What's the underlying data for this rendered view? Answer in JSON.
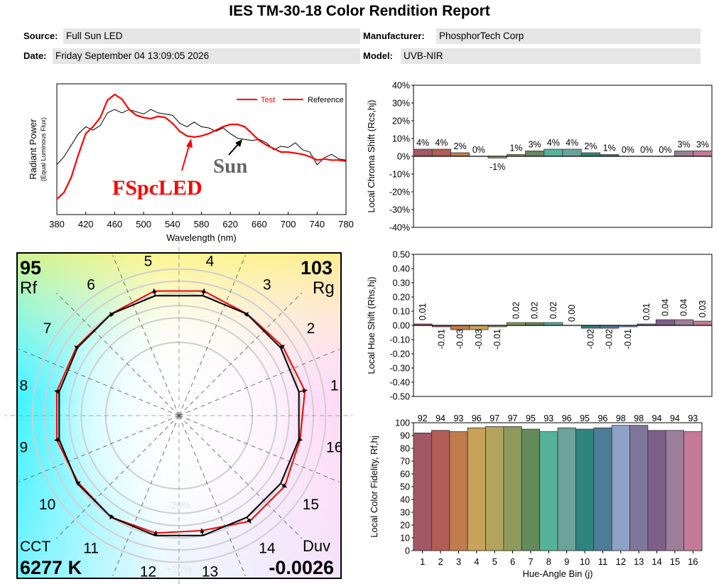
{
  "report": {
    "title": "IES TM-30-18 Color Rendition Report",
    "source_label": "Source:",
    "source_value": "Full Sun LED",
    "date_label": "Date:",
    "date_value": "Friday September 04 13:09:05 2026",
    "manufacturer_label": "Manufacturer:",
    "manufacturer_value": "PhosphorTech Corp",
    "model_label": "Model:",
    "model_value": "UVB-NIR"
  },
  "colors": {
    "test": "#ff0000",
    "reference": "#000000",
    "bins": [
      "#a35865",
      "#b15c55",
      "#c07c4c",
      "#c8a259",
      "#b4a45e",
      "#8d9a5b",
      "#658a5a",
      "#56b29a",
      "#6ba29a",
      "#2f847f",
      "#4e7d97",
      "#8ea2c8",
      "#7f779a",
      "#7d5f8a",
      "#9c7e9a",
      "#c47a98"
    ]
  },
  "chart_data": [
    {
      "type": "line",
      "name": "spectral-power",
      "xlabel": "Wavelength (nm)",
      "ylabel": "Radiant Power",
      "ylabel_sub": "(Equal Luminous Flux)",
      "xlim": [
        380,
        780
      ],
      "xticks": [
        380,
        420,
        460,
        500,
        540,
        580,
        620,
        660,
        700,
        740,
        780
      ],
      "legend": [
        "Test",
        "Reference"
      ],
      "legend_position": "top-right",
      "annotations": [
        "FSpcLED",
        "Sun"
      ],
      "series": [
        {
          "name": "Test",
          "x": [
            380,
            390,
            400,
            410,
            420,
            430,
            440,
            450,
            460,
            470,
            480,
            490,
            500,
            510,
            520,
            530,
            540,
            550,
            560,
            570,
            580,
            590,
            600,
            610,
            620,
            630,
            640,
            650,
            660,
            670,
            680,
            690,
            700,
            710,
            720,
            730,
            740,
            750,
            760,
            770,
            780
          ],
          "y": [
            0.09,
            0.15,
            0.28,
            0.48,
            0.66,
            0.72,
            0.8,
            0.95,
            1.0,
            0.96,
            0.87,
            0.82,
            0.8,
            0.79,
            0.81,
            0.8,
            0.75,
            0.68,
            0.64,
            0.63,
            0.64,
            0.66,
            0.69,
            0.72,
            0.74,
            0.74,
            0.72,
            0.66,
            0.6,
            0.56,
            0.53,
            0.5,
            0.5,
            0.49,
            0.48,
            0.46,
            0.43,
            0.44,
            0.43,
            0.43,
            0.42
          ]
        },
        {
          "name": "Reference",
          "x": [
            380,
            390,
            400,
            410,
            420,
            430,
            440,
            450,
            460,
            470,
            480,
            490,
            500,
            510,
            520,
            530,
            540,
            550,
            560,
            570,
            580,
            590,
            600,
            610,
            620,
            630,
            640,
            650,
            660,
            670,
            680,
            690,
            700,
            710,
            720,
            730,
            740,
            750,
            760,
            770,
            780
          ],
          "y": [
            0.39,
            0.46,
            0.56,
            0.66,
            0.72,
            0.69,
            0.73,
            0.84,
            0.87,
            0.84,
            0.87,
            0.85,
            0.83,
            0.87,
            0.84,
            0.83,
            0.82,
            0.75,
            0.72,
            0.76,
            0.72,
            0.71,
            0.68,
            0.71,
            0.66,
            0.62,
            0.61,
            0.6,
            0.61,
            0.58,
            0.52,
            0.55,
            0.54,
            0.58,
            0.52,
            0.5,
            0.39,
            0.45,
            0.48,
            0.44,
            0.43
          ]
        }
      ]
    },
    {
      "type": "bar",
      "name": "local-chroma-shift",
      "ylabel": "Local Chroma Shift (Rcs,hj)",
      "ylim": [
        -40,
        40
      ],
      "yticks": [
        "-40%",
        "-30%",
        "-20%",
        "-10%",
        "0%",
        "10%",
        "20%",
        "30%",
        "40%"
      ],
      "categories": [
        1,
        2,
        3,
        4,
        5,
        6,
        7,
        8,
        9,
        10,
        11,
        12,
        13,
        14,
        15,
        16
      ],
      "values": [
        4,
        4,
        2,
        0,
        -1,
        1,
        3,
        4,
        4,
        2,
        1,
        0,
        0,
        0,
        3,
        3
      ],
      "labels": [
        "4%",
        "4%",
        "2%",
        "0%",
        "-1%",
        "1%",
        "3%",
        "4%",
        "4%",
        "2%",
        "1%",
        "0%",
        "0%",
        "0%",
        "3%",
        "3%"
      ]
    },
    {
      "type": "bar",
      "name": "local-hue-shift",
      "ylabel": "Local Hue Shift (Rhs,hj)",
      "ylim": [
        -0.5,
        0.5
      ],
      "yticks": [
        "-0.50",
        "-0.40",
        "-0.30",
        "-0.20",
        "-0.10",
        "0.00",
        "0.10",
        "0.20",
        "0.30",
        "0.40",
        "0.50"
      ],
      "categories": [
        1,
        2,
        3,
        4,
        5,
        6,
        7,
        8,
        9,
        10,
        11,
        12,
        13,
        14,
        15,
        16
      ],
      "values": [
        0.01,
        -0.01,
        -0.03,
        -0.03,
        -0.01,
        0.02,
        0.02,
        0.02,
        0.0,
        -0.02,
        -0.02,
        -0.01,
        0.01,
        0.04,
        0.04,
        0.03
      ],
      "labels": [
        "0.01",
        "-0.01",
        "-0.03",
        "-0.03",
        "-0.01",
        "0.02",
        "0.02",
        "0.02",
        "0.00",
        "-0.02",
        "-0.02",
        "-0.01",
        "0.01",
        "0.04",
        "0.04",
        "0.03"
      ]
    },
    {
      "type": "bar",
      "name": "local-color-fidelity",
      "xlabel": "Hue-Angle Bin (j)",
      "ylabel": "Local Color Fidelity, Rf,hj",
      "ylim": [
        0,
        100
      ],
      "yticks": [
        0,
        10,
        20,
        30,
        40,
        50,
        60,
        70,
        80,
        90,
        100
      ],
      "categories": [
        1,
        2,
        3,
        4,
        5,
        6,
        7,
        8,
        9,
        10,
        11,
        12,
        13,
        14,
        15,
        16
      ],
      "values": [
        92,
        94,
        93,
        96,
        97,
        97,
        95,
        93,
        96,
        95,
        96,
        98,
        98,
        94,
        94,
        93
      ]
    },
    {
      "type": "scatter",
      "name": "color-vector-graphic",
      "corner_values": {
        "rf_value": "95",
        "rf_label": "Rf",
        "rg_value": "103",
        "rg_label": "Rg",
        "cct_label": "CCT",
        "cct_value": "6277 K",
        "duv_label": "Duv",
        "duv_value": "-0.0026"
      },
      "ring_labels": [
        "-20%",
        "+20%"
      ],
      "bin_labels": [
        "1",
        "2",
        "3",
        "4",
        "5",
        "6",
        "7",
        "8",
        "9",
        "10",
        "11",
        "12",
        "13",
        "14",
        "15",
        "16"
      ],
      "reference_radius": 1.0,
      "test_radius_by_bin": [
        1.05,
        1.02,
        1.0,
        1.04,
        1.04,
        1.0,
        1.01,
        1.02,
        1.02,
        0.99,
        1.0,
        0.98,
        0.96,
        1.04,
        1.04,
        1.01
      ]
    }
  ]
}
